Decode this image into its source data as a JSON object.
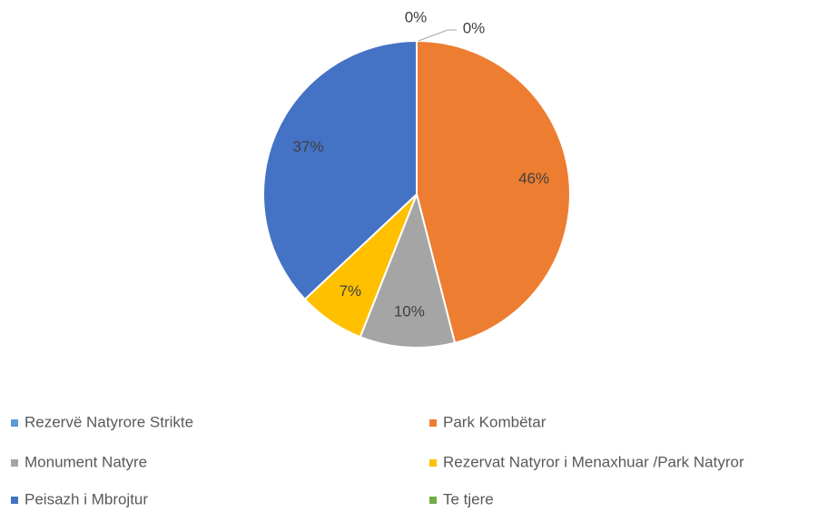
{
  "chart_data": {
    "type": "pie",
    "categories": [
      "Rezervë Natyrore Strikte",
      "Park Kombëtar",
      "Monument Natyre",
      "Rezervat Natyror i Menaxhuar /Park Natyror",
      "Peisazh i Mbrojtur",
      "Te tjere"
    ],
    "values": [
      0,
      46,
      10,
      7,
      37,
      0
    ],
    "value_labels": [
      "0%",
      "46%",
      "10%",
      "7%",
      "37%",
      "0%"
    ],
    "colors": [
      "#5b9bd5",
      "#ed7d31",
      "#a5a5a5",
      "#ffc000",
      "#4472c4",
      "#70ad47"
    ],
    "legend": "bottom"
  }
}
